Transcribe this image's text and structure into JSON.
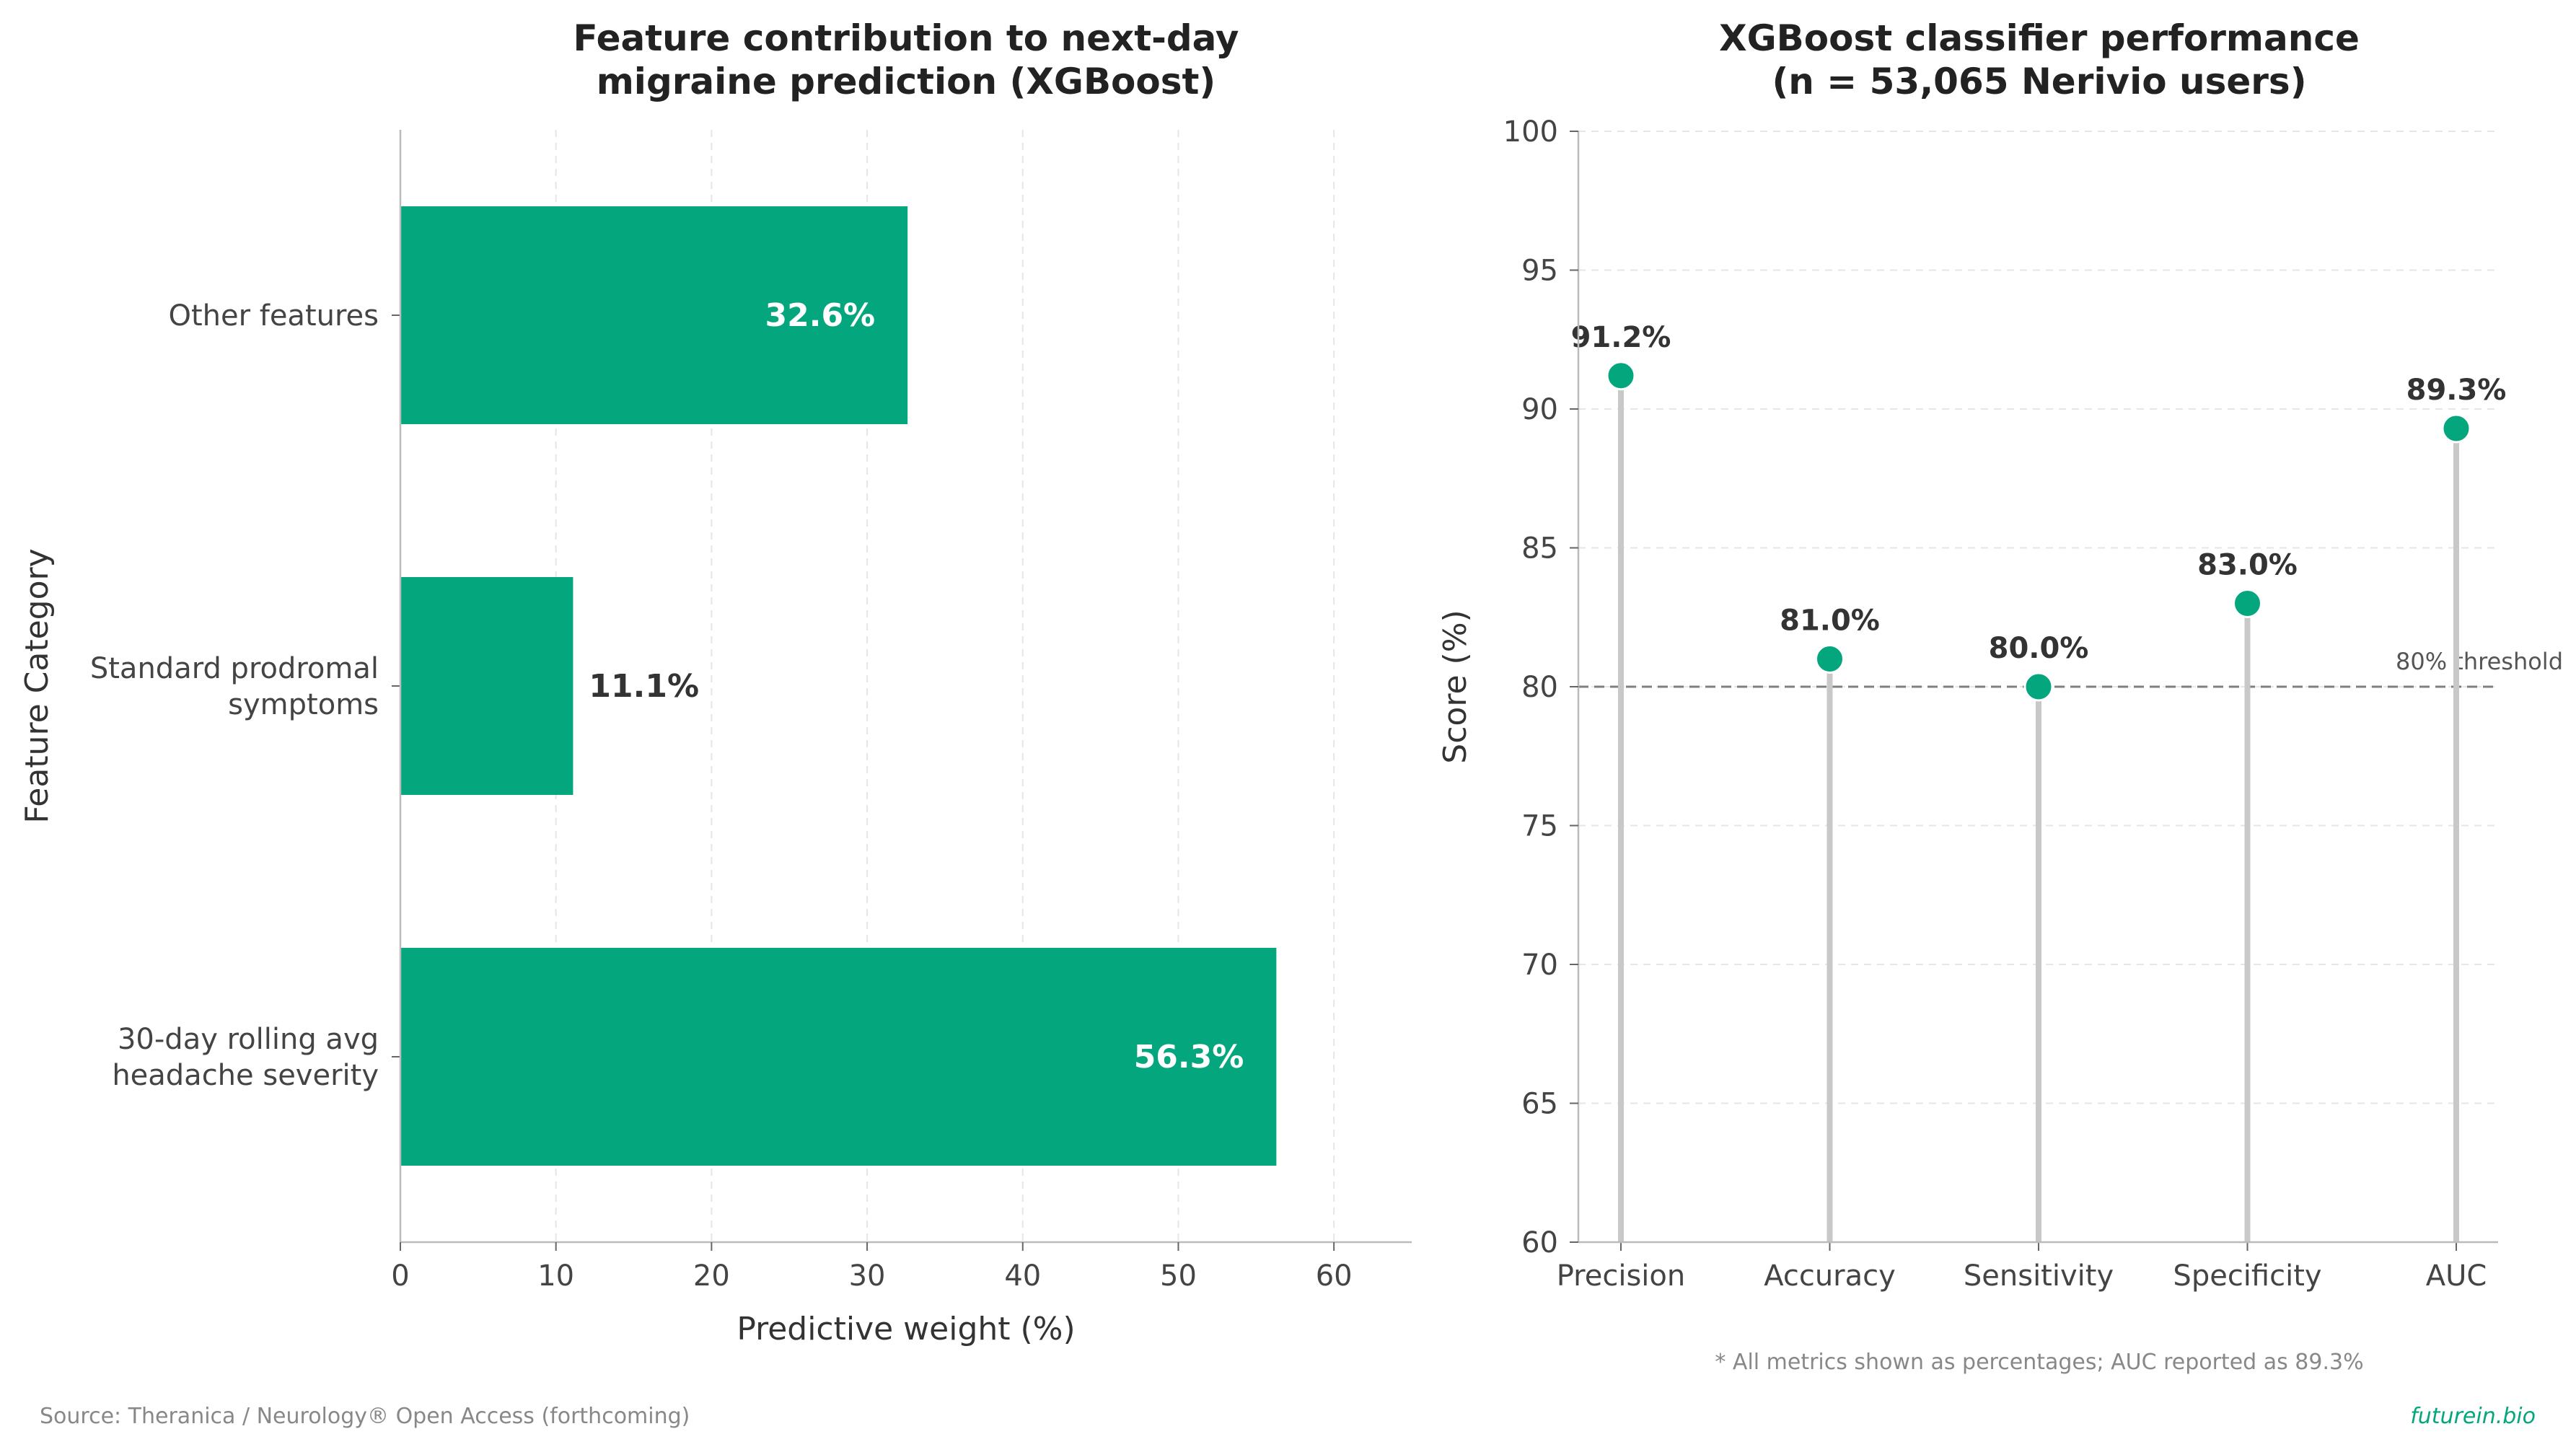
{
  "colors": {
    "bar": "#04a77d",
    "stem": "#c8c8c8",
    "threshold": "#808080",
    "grid": "#e6e6e6",
    "axis": "#bbbbbb",
    "brand": "#04a77d"
  },
  "chart_data": [
    {
      "type": "bar",
      "orientation": "horizontal",
      "title": "Feature contribution to next-day\nmigraine prediction (XGBoost)",
      "xlabel": "Predictive weight (%)",
      "ylabel": "Feature Category",
      "categories": [
        "Other features",
        "Standard prodromal\nsymptoms",
        "30-day rolling avg\nheadache severity"
      ],
      "values": [
        32.6,
        11.1,
        56.3
      ],
      "data_labels": [
        "32.6%",
        "11.1%",
        "56.3%"
      ],
      "xlim": [
        0,
        65
      ],
      "xticks": [
        0,
        10,
        20,
        30,
        40,
        50,
        60
      ],
      "grid": "vertical dashed"
    },
    {
      "type": "scatter",
      "style": "lollipop",
      "title": "XGBoost classifier performance\n(n = 53,065 Nerivio users)",
      "ylabel": "Score (%)",
      "categories": [
        "Precision",
        "Accuracy",
        "Sensitivity",
        "Specificity",
        "AUC"
      ],
      "values": [
        91.2,
        81.0,
        80.0,
        83.0,
        89.3
      ],
      "data_labels": [
        "91.2%",
        "81.0%",
        "80.0%",
        "83.0%",
        "89.3%"
      ],
      "ylim": [
        60,
        100
      ],
      "yticks": [
        60,
        65,
        70,
        75,
        80,
        85,
        90,
        95,
        100
      ],
      "threshold": {
        "value": 80,
        "label": "80% threshold"
      },
      "grid": "horizontal dashed"
    }
  ],
  "footnote": "* All metrics shown as percentages; AUC reported as 89.3%",
  "source": "Source: Theranica / Neurology® Open Access (forthcoming)",
  "brand": "futurein.bio"
}
